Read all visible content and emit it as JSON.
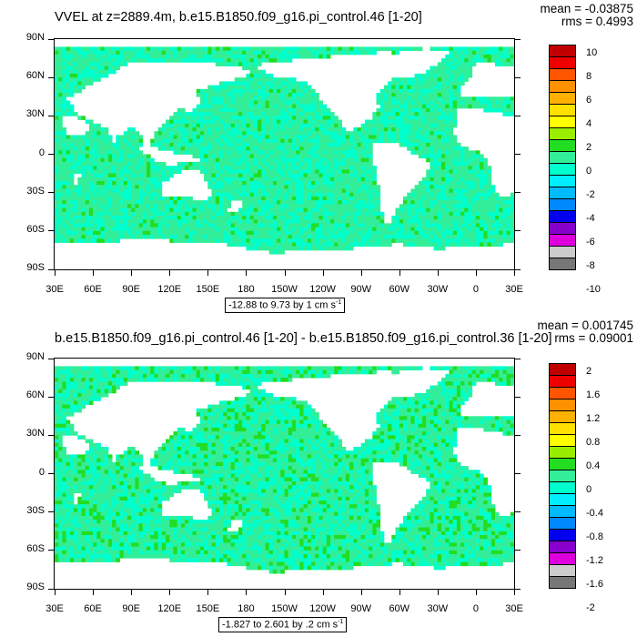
{
  "panels": [
    {
      "id": "top",
      "title": "VVEL at z=2889.4m, b.e15.B1850.f09_g16.pi_control.46 [1-20]",
      "mean": "mean = -0.03875",
      "rms": "rms = 0.4993",
      "range_text": "-12.88 to 9.73 by 1 cm s",
      "range_unit_sup": "-1",
      "colorbar_labels": [
        "10",
        "8",
        "6",
        "4",
        "2",
        "0",
        "-2",
        "-4",
        "-6",
        "-8",
        "-10"
      ]
    },
    {
      "id": "bottom",
      "title": "b.e15.B1850.f09_g16.pi_control.46 [1-20] - b.e15.B1850.f09_g16.pi_control.36 [1-20]",
      "mean": "mean = 0.001745",
      "rms": "rms = 0.09001",
      "range_text": "-1.827 to 2.601 by .2 cm s",
      "range_unit_sup": "-1",
      "colorbar_labels": [
        "2",
        "1.6",
        "1.2",
        "0.8",
        "0.4",
        "0",
        "-0.4",
        "-0.8",
        "-1.2",
        "-1.6",
        "-2"
      ]
    }
  ],
  "lat_ticks": [
    "90N",
    "60N",
    "30N",
    "0",
    "30S",
    "60S",
    "90S"
  ],
  "lon_ticks": [
    "30E",
    "60E",
    "90E",
    "120E",
    "150E",
    "180",
    "150W",
    "120W",
    "90W",
    "60W",
    "30W",
    "0",
    "30E"
  ],
  "colors": {
    "colorbar": [
      "#c00000",
      "#ee0000",
      "#ff5500",
      "#ff9000",
      "#ffb000",
      "#ffe000",
      "#ffff00",
      "#99ee00",
      "#22dd22",
      "#33ee99",
      "#00ffcc",
      "#00eeff",
      "#00bbff",
      "#0088ff",
      "#0000ee",
      "#8800cc",
      "#dd00dd",
      "#cccccc",
      "#777777"
    ],
    "ocean_main": "#33ee99",
    "ocean_alt": "#00ffcc",
    "ocean_green": "#22dd22"
  }
}
